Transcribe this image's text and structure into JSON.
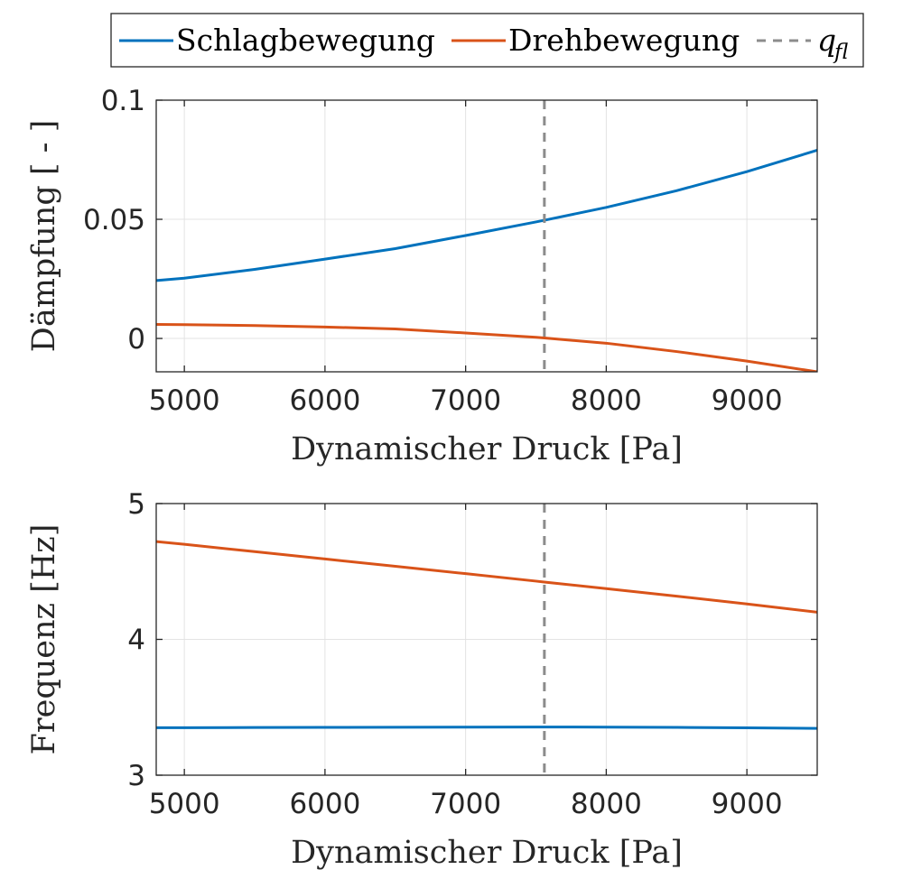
{
  "legend": {
    "location": "top, horizontal",
    "entries": [
      {
        "label": "Schlagbewegung",
        "color": "#0072BD",
        "style": "solid"
      },
      {
        "label": "Drehbewegung",
        "color": "#D95319",
        "style": "solid"
      },
      {
        "label": "q",
        "subscript": "fl",
        "color": "#8C8C8C",
        "style": "dashed"
      }
    ]
  },
  "chart_data": [
    {
      "type": "line",
      "title": "",
      "xlabel": "Dynamischer Druck [Pa]",
      "ylabel": "Dämpfung [ - ]",
      "xlim": [
        4800,
        9500
      ],
      "ylim": [
        -0.014,
        0.1
      ],
      "xticks": [
        5000,
        6000,
        7000,
        8000,
        9000
      ],
      "xtick_labels": [
        "5000",
        "6000",
        "7000",
        "8000",
        "9000"
      ],
      "yticks": [
        0,
        0.05,
        0.1
      ],
      "ytick_labels": [
        "0",
        "0.05",
        "0.1"
      ],
      "grid": true,
      "vline": {
        "name": "q_fl",
        "x": 7560
      },
      "x": [
        4800,
        5000,
        5500,
        6000,
        6500,
        7000,
        7500,
        7560,
        8000,
        8500,
        9000,
        9500
      ],
      "series": [
        {
          "name": "Schlagbewegung",
          "color": "#0072BD",
          "values": [
            0.0243,
            0.0253,
            0.029,
            0.0333,
            0.0377,
            0.0432,
            0.0489,
            0.0496,
            0.055,
            0.062,
            0.07,
            0.079
          ]
        },
        {
          "name": "Drehbewegung",
          "color": "#D95319",
          "values": [
            0.0059,
            0.0058,
            0.0054,
            0.0048,
            0.004,
            0.0023,
            0.0005,
            0.0002,
            -0.002,
            -0.0055,
            -0.0095,
            -0.014
          ]
        }
      ]
    },
    {
      "type": "line",
      "title": "",
      "xlabel": "Dynamischer Druck [Pa]",
      "ylabel": "Frequenz [Hz]",
      "xlim": [
        4800,
        9500
      ],
      "ylim": [
        3,
        5
      ],
      "xticks": [
        5000,
        6000,
        7000,
        8000,
        9000
      ],
      "xtick_labels": [
        "5000",
        "6000",
        "7000",
        "8000",
        "9000"
      ],
      "yticks": [
        3,
        4,
        5
      ],
      "ytick_labels": [
        "3",
        "4",
        "5"
      ],
      "grid": true,
      "vline": {
        "name": "q_fl",
        "x": 7560
      },
      "x": [
        4800,
        5000,
        5500,
        6000,
        6500,
        7000,
        7500,
        7560,
        8000,
        8500,
        9000,
        9500
      ],
      "series": [
        {
          "name": "Schlagbewegung",
          "color": "#0072BD",
          "values": [
            3.35,
            3.35,
            3.351,
            3.352,
            3.353,
            3.354,
            3.355,
            3.355,
            3.354,
            3.352,
            3.349,
            3.345
          ]
        },
        {
          "name": "Drehbewegung",
          "color": "#D95319",
          "values": [
            4.72,
            4.7,
            4.646,
            4.592,
            4.538,
            4.484,
            4.429,
            4.422,
            4.374,
            4.318,
            4.261,
            4.2
          ]
        }
      ]
    }
  ]
}
